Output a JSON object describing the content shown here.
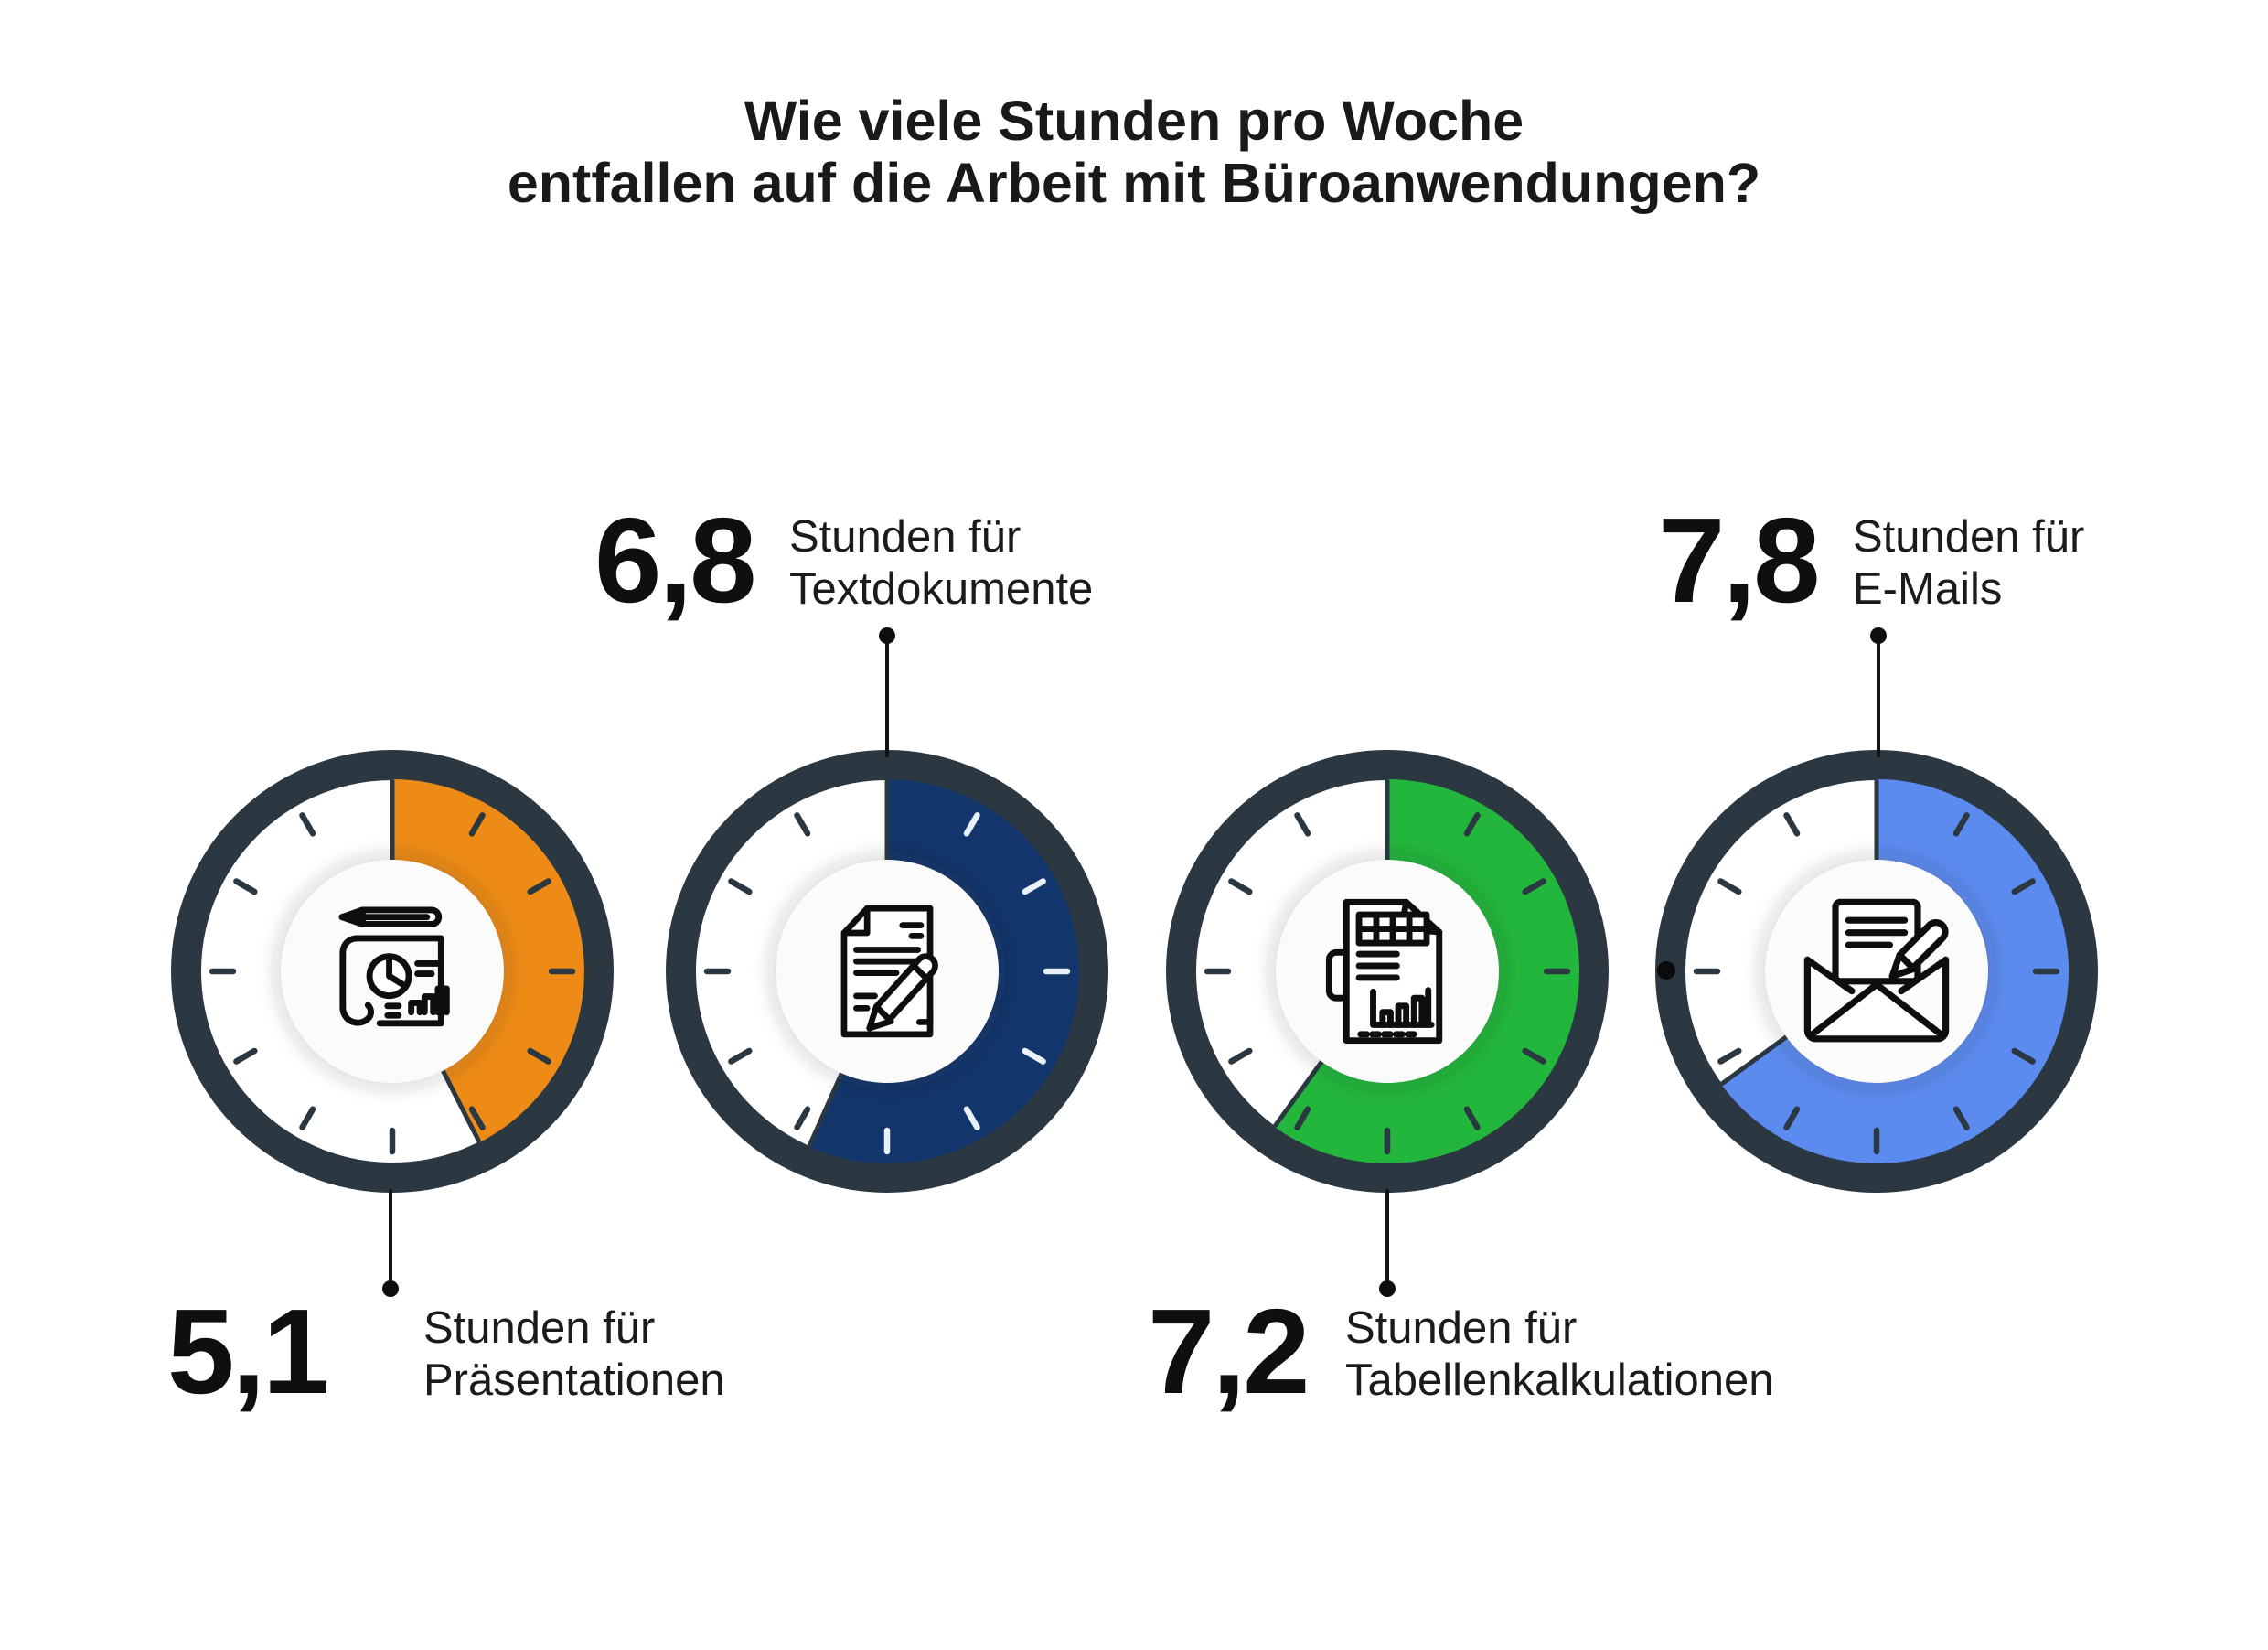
{
  "title": {
    "line1": "Wie viele Stunden pro Woche",
    "line2": "entfallen auf die Arbeit mit Büroanwendungen?"
  },
  "chart_data": {
    "type": "pie",
    "variant": "clock-gauge-donuts",
    "title": "Wie viele Stunden pro Woche entfallen auf die Arbeit mit Büroanwendungen?",
    "unit": "Stunden pro Woche",
    "full_dial_hours": 12,
    "categories": [
      "Präsentationen",
      "Textdokumente",
      "Tabellenkalkulationen",
      "E-Mails"
    ],
    "values": [
      5.1,
      6.8,
      7.2,
      7.8
    ],
    "items": [
      {
        "value": 5.1,
        "value_label": "5,1",
        "label_line1": "Stunden für",
        "label_line2": "Präsentationen",
        "color": "#ED8B16",
        "icon": "presentation-icon",
        "label_position": "bottom"
      },
      {
        "value": 6.8,
        "value_label": "6,8",
        "label_line1": "Stunden für",
        "label_line2": "Textdokumente",
        "color": "#12356B",
        "icon": "document-icon",
        "label_position": "top",
        "covered_tick_color": "#E9F1FB"
      },
      {
        "value": 7.2,
        "value_label": "7,2",
        "label_line1": "Stunden für",
        "label_line2": "Tabellenkalkulationen",
        "color": "#23B63C",
        "icon": "spreadsheet-icon",
        "label_position": "bottom"
      },
      {
        "value": 7.8,
        "value_label": "7,8",
        "label_line1": "Stunden für",
        "label_line2": "E-Mails",
        "color": "#5C8BEF",
        "icon": "email-icon",
        "label_position": "top",
        "side_dot": true
      }
    ]
  },
  "colors": {
    "background": "#FFFFFF",
    "ring": "#2B3842",
    "tick": "#2B3842",
    "hand": "#2B3842",
    "text": "#1A1A1A",
    "connector": "#121212",
    "icon_stroke": "#0E0E0E",
    "icon_circle": "#FBFBFB"
  }
}
